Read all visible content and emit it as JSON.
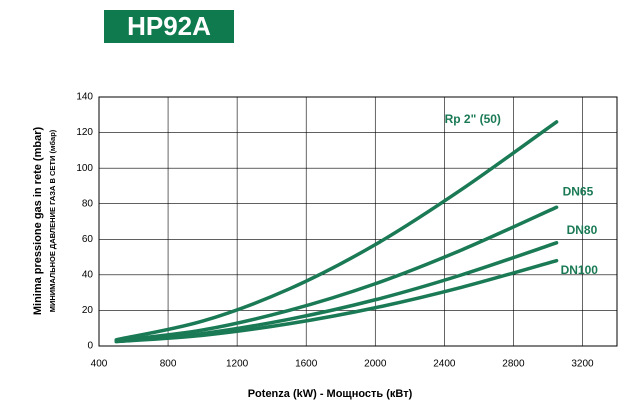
{
  "chart_data": {
    "type": "line",
    "title": "HP92A",
    "x_label": "Potenza (kW) -  Мощность  (кВт)",
    "y_label": "Minima pressione gas in rete  (mbar)",
    "y_label_2": "МИНИМАЛЬНОЕ ДАВЛЕНИЕ ГАЗА В СЕТИ (мбар)",
    "x": [
      500,
      1000,
      1500,
      2000,
      2500,
      3050
    ],
    "series": [
      {
        "name": "Rp 2\" (50)",
        "color": "#1a7a55",
        "values": [
          3.5,
          14,
          32,
          57,
          88,
          126
        ]
      },
      {
        "name": "DN65",
        "color": "#1a7a55",
        "values": [
          3,
          9,
          20,
          35,
          54,
          78
        ]
      },
      {
        "name": "DN80",
        "color": "#1a7a55",
        "values": [
          2.5,
          7,
          15,
          26,
          40,
          58
        ]
      },
      {
        "name": "DN100",
        "color": "#1a7a55",
        "values": [
          2.5,
          6,
          12.5,
          21.5,
          33,
          48
        ]
      }
    ],
    "xlim": [
      400,
      3400
    ],
    "xticks": [
      400,
      800,
      1200,
      1600,
      2000,
      2400,
      2800,
      3200
    ],
    "ylim": [
      0,
      140
    ],
    "yticks": [
      0,
      20,
      40,
      60,
      80,
      100,
      120,
      140
    ],
    "grid": true
  }
}
